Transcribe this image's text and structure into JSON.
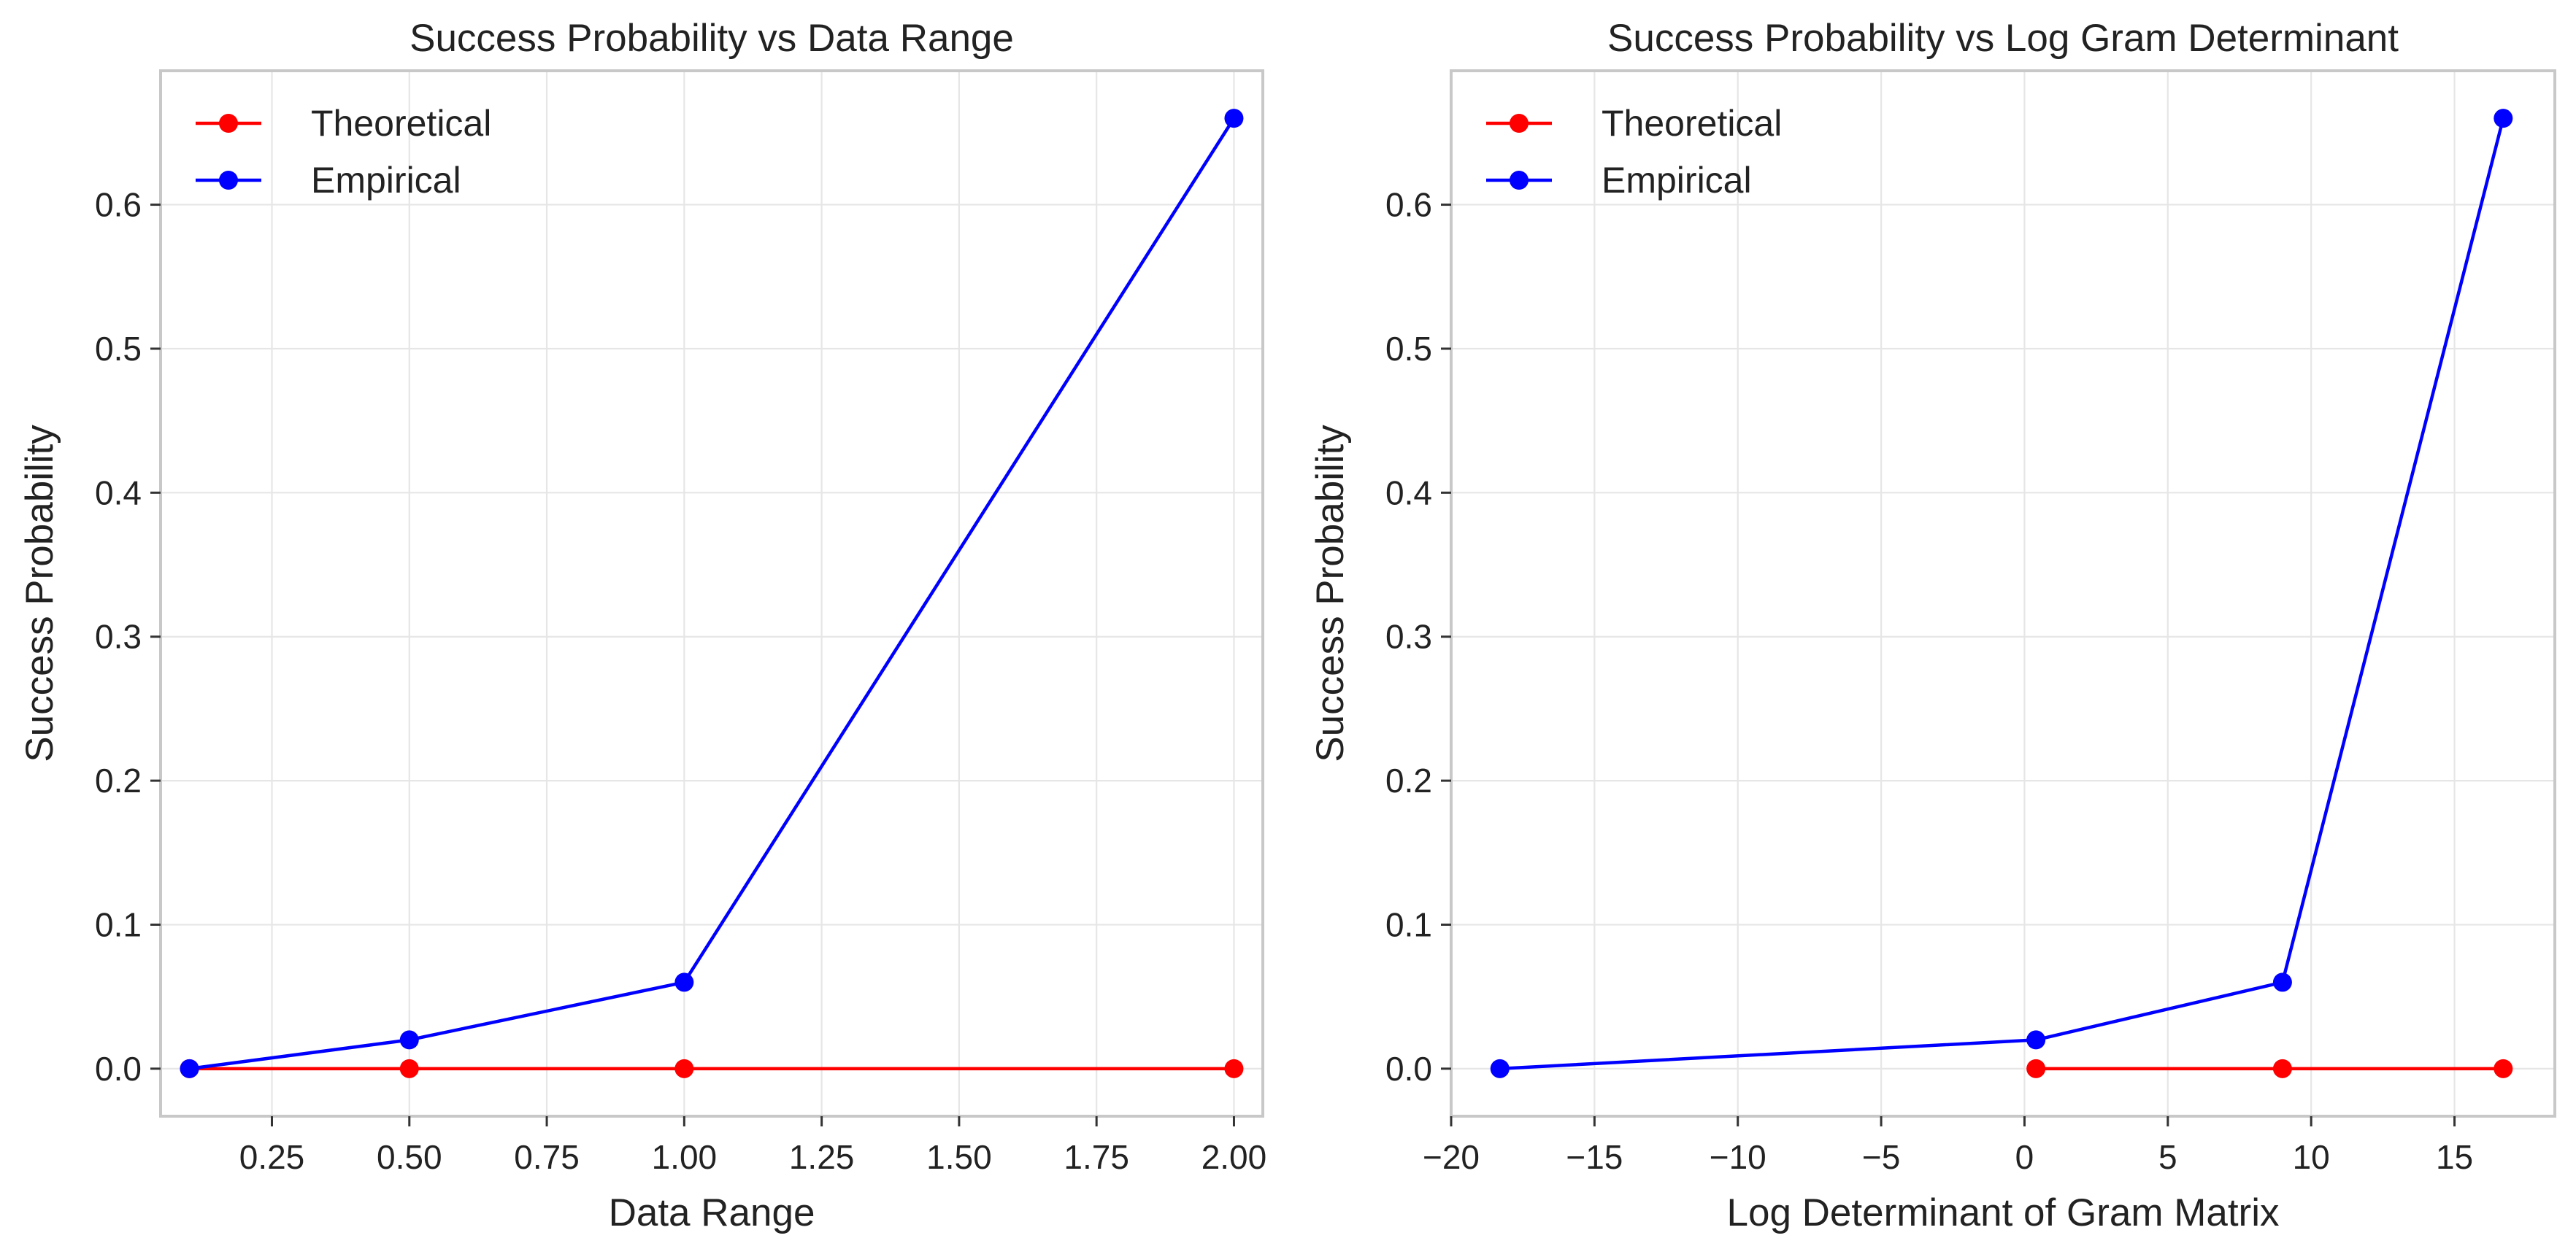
{
  "chart_data": [
    {
      "type": "line",
      "title": "Success Probability vs Data Range",
      "xlabel": "Data Range",
      "ylabel": "Success Probability",
      "xlim": [
        0.0475,
        2.0525
      ],
      "ylim": [
        -0.033,
        0.693
      ],
      "xticks": [
        0.25,
        0.5,
        0.75,
        1.0,
        1.25,
        1.5,
        1.75,
        2.0
      ],
      "xtick_labels": [
        "0.25",
        "0.50",
        "0.75",
        "1.00",
        "1.25",
        "1.50",
        "1.75",
        "2.00"
      ],
      "yticks": [
        0.0,
        0.1,
        0.2,
        0.3,
        0.4,
        0.5,
        0.6
      ],
      "ytick_labels": [
        "0.0",
        "0.1",
        "0.2",
        "0.3",
        "0.4",
        "0.5",
        "0.6"
      ],
      "grid": true,
      "legend_position": "top-left",
      "series": [
        {
          "name": "Theoretical",
          "color": "#ff0000",
          "x": [
            0.1,
            0.5,
            1.0,
            2.0
          ],
          "y": [
            0.0,
            0.0,
            0.0,
            0.0
          ]
        },
        {
          "name": "Empirical",
          "color": "#0000ff",
          "x": [
            0.1,
            0.5,
            1.0,
            2.0
          ],
          "y": [
            0.0,
            0.02,
            0.06,
            0.66
          ]
        }
      ]
    },
    {
      "type": "line",
      "title": "Success Probability vs Log Gram Determinant",
      "xlabel": "Log Determinant of Gram Matrix",
      "ylabel": "Success Probability",
      "xlim": [
        -20.0,
        18.5
      ],
      "ylim": [
        -0.033,
        0.693
      ],
      "xticks": [
        -20,
        -15,
        -10,
        -5,
        0,
        5,
        10,
        15
      ],
      "xtick_labels": [
        "−20",
        "−15",
        "−10",
        "−5",
        "0",
        "5",
        "10",
        "15"
      ],
      "yticks": [
        0.0,
        0.1,
        0.2,
        0.3,
        0.4,
        0.5,
        0.6
      ],
      "ytick_labels": [
        "0.0",
        "0.1",
        "0.2",
        "0.3",
        "0.4",
        "0.5",
        "0.6"
      ],
      "grid": true,
      "legend_position": "top-left",
      "series": [
        {
          "name": "Theoretical",
          "color": "#ff0000",
          "x": [
            0.4,
            9.0,
            16.7
          ],
          "y": [
            0.0,
            0.0,
            0.0
          ]
        },
        {
          "name": "Empirical",
          "color": "#0000ff",
          "x": [
            -18.3,
            0.4,
            9.0,
            16.7
          ],
          "y": [
            0.0,
            0.02,
            0.06,
            0.66
          ]
        }
      ]
    }
  ]
}
